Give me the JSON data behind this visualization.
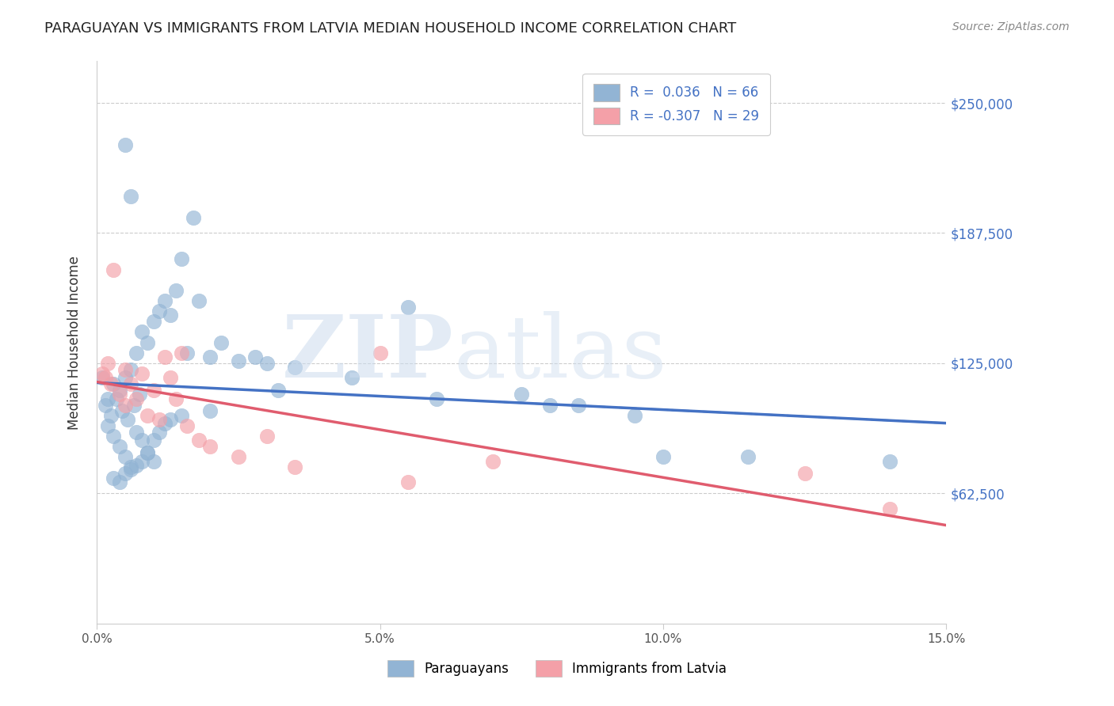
{
  "title": "PARAGUAYAN VS IMMIGRANTS FROM LATVIA MEDIAN HOUSEHOLD INCOME CORRELATION CHART",
  "source": "Source: ZipAtlas.com",
  "ylabel": "Median Household Income",
  "xlabel_ticks": [
    "0.0%",
    "5.0%",
    "10.0%",
    "15.0%"
  ],
  "xlabel_vals": [
    0.0,
    5.0,
    10.0,
    15.0
  ],
  "ytick_labels": [
    "$62,500",
    "$125,000",
    "$187,500",
    "$250,000"
  ],
  "ytick_vals": [
    62500,
    125000,
    187500,
    250000
  ],
  "xlim": [
    0.0,
    15.0
  ],
  "ylim": [
    0,
    270000
  ],
  "legend_blue_r": "0.036",
  "legend_blue_n": "66",
  "legend_pink_r": "-0.307",
  "legend_pink_n": "29",
  "legend_blue_label": "Paraguayans",
  "legend_pink_label": "Immigrants from Latvia",
  "blue_color": "#92b4d4",
  "pink_color": "#f4a0a8",
  "line_blue": "#4472c4",
  "line_pink": "#e05c6e",
  "blue_scatter_x": [
    0.1,
    0.15,
    0.2,
    0.2,
    0.25,
    0.3,
    0.3,
    0.35,
    0.4,
    0.4,
    0.45,
    0.5,
    0.5,
    0.55,
    0.6,
    0.6,
    0.65,
    0.7,
    0.7,
    0.75,
    0.8,
    0.8,
    0.9,
    0.9,
    1.0,
    1.0,
    1.1,
    1.2,
    1.3,
    1.3,
    1.4,
    1.5,
    1.6,
    1.7,
    2.0,
    2.2,
    2.5,
    2.8,
    3.0,
    3.5,
    0.5,
    0.6,
    1.8,
    5.5,
    7.5,
    8.5,
    9.5,
    10.0,
    11.5,
    14.0,
    0.3,
    0.4,
    0.5,
    0.6,
    0.7,
    0.8,
    0.9,
    1.0,
    1.1,
    1.2,
    1.5,
    2.0,
    3.2,
    4.5,
    6.0,
    8.0
  ],
  "blue_scatter_y": [
    118000,
    105000,
    108000,
    95000,
    100000,
    115000,
    90000,
    108000,
    112000,
    85000,
    102000,
    118000,
    80000,
    98000,
    122000,
    75000,
    105000,
    130000,
    92000,
    110000,
    140000,
    88000,
    135000,
    82000,
    145000,
    78000,
    150000,
    155000,
    148000,
    98000,
    160000,
    175000,
    130000,
    195000,
    128000,
    135000,
    126000,
    128000,
    125000,
    123000,
    230000,
    205000,
    155000,
    152000,
    110000,
    105000,
    100000,
    80000,
    80000,
    78000,
    70000,
    68000,
    72000,
    74000,
    76000,
    78000,
    82000,
    88000,
    92000,
    96000,
    100000,
    102000,
    112000,
    118000,
    108000,
    105000
  ],
  "pink_scatter_x": [
    0.1,
    0.15,
    0.2,
    0.25,
    0.3,
    0.4,
    0.5,
    0.5,
    0.6,
    0.7,
    0.8,
    0.9,
    1.0,
    1.1,
    1.2,
    1.3,
    1.4,
    1.5,
    1.6,
    1.8,
    2.0,
    2.5,
    3.0,
    3.5,
    5.0,
    5.5,
    7.0,
    12.5,
    14.0
  ],
  "pink_scatter_y": [
    120000,
    118000,
    125000,
    115000,
    170000,
    110000,
    122000,
    105000,
    115000,
    108000,
    120000,
    100000,
    112000,
    98000,
    128000,
    118000,
    108000,
    130000,
    95000,
    88000,
    85000,
    80000,
    90000,
    75000,
    130000,
    68000,
    78000,
    72000,
    55000
  ]
}
